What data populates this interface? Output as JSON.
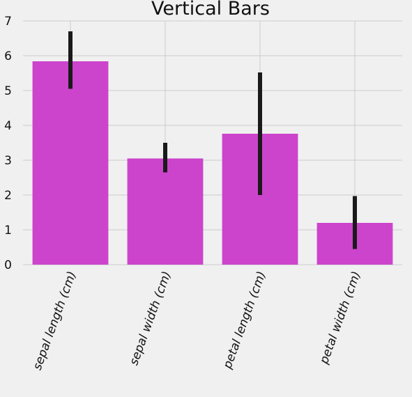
{
  "chart_data": {
    "type": "bar",
    "title": "Vertical Bars",
    "xlabel": "",
    "ylabel": "",
    "categories": [
      "sepal length (cm)",
      "sepal width (cm)",
      "petal length (cm)",
      "petal width (cm)"
    ],
    "values": [
      5.84,
      3.05,
      3.76,
      1.2
    ],
    "error_low": [
      5.05,
      2.65,
      2.0,
      0.45
    ],
    "error_high": [
      6.7,
      3.5,
      5.52,
      1.97
    ],
    "ylim": [
      0,
      7
    ],
    "yticks": [
      "0",
      "1",
      "2",
      "3",
      "4",
      "5",
      "6",
      "7"
    ],
    "grid": true,
    "bar_color": "#cc44cc",
    "error_color": "#1a1a1a",
    "grid_color": "#cbcbcb",
    "background_color": "#f0f0f0"
  }
}
